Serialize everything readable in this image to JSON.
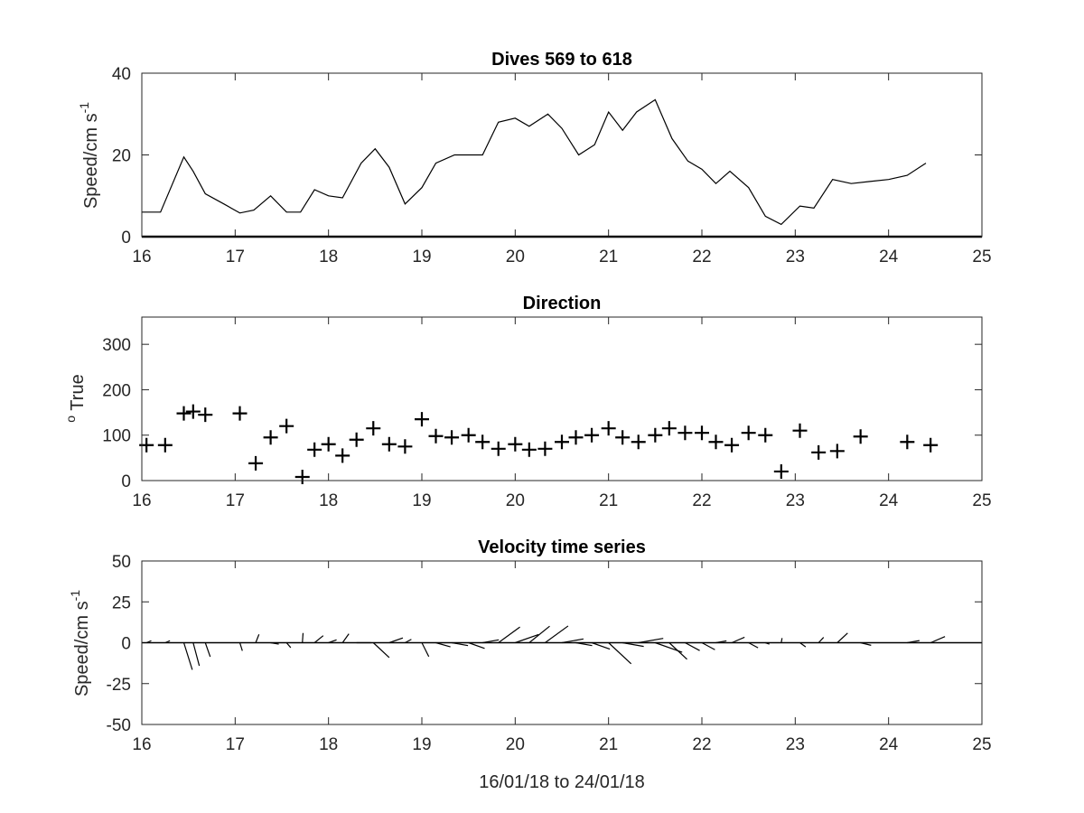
{
  "chart_data": [
    {
      "type": "line",
      "title": "Dives 569 to 618",
      "xlabel": "",
      "ylabel": "Speed/cm s",
      "ylabel_superscript": "-1",
      "xlim": [
        16,
        25
      ],
      "ylim": [
        0,
        40
      ],
      "xticks": [
        "16",
        "17",
        "18",
        "19",
        "20",
        "21",
        "22",
        "23",
        "24",
        "25"
      ],
      "yticks": [
        "0",
        "20",
        "40"
      ],
      "grid": false,
      "series": [
        {
          "x": [
            16.0,
            16.2,
            16.45,
            16.55,
            16.68,
            16.88,
            17.05,
            17.2,
            17.38,
            17.55,
            17.7,
            17.85,
            18.0,
            18.15,
            18.35,
            18.5,
            18.65,
            18.82,
            19.0,
            19.15,
            19.35,
            19.5,
            19.65,
            19.82,
            20.0,
            20.15,
            20.35,
            20.5,
            20.68,
            20.85,
            21.0,
            21.15,
            21.3,
            21.5,
            21.68,
            21.85,
            22.0,
            22.15,
            22.3,
            22.5,
            22.68,
            22.85,
            23.05,
            23.2,
            23.4,
            23.6,
            23.8,
            24.0,
            24.2,
            24.4
          ],
          "y": [
            6,
            6,
            19.5,
            16,
            10.5,
            8,
            5.8,
            6.5,
            10,
            6,
            6,
            11.5,
            10,
            9.5,
            18,
            21.5,
            17,
            8,
            12,
            18,
            20,
            20,
            20,
            28,
            29,
            27,
            30,
            26.5,
            20,
            22.5,
            30.5,
            26,
            30.5,
            33.5,
            24,
            18.5,
            16.5,
            13,
            16,
            12,
            5,
            3,
            7.5,
            7,
            14,
            13,
            13.5,
            14,
            15,
            18
          ]
        }
      ]
    },
    {
      "type": "scatter",
      "title": "Direction",
      "xlabel": "",
      "ylabel": "True",
      "ylabel_prefix": "o",
      "xlim": [
        16,
        25
      ],
      "ylim": [
        0,
        360
      ],
      "xticks": [
        "16",
        "17",
        "18",
        "19",
        "20",
        "21",
        "22",
        "23",
        "24",
        "25"
      ],
      "yticks": [
        "0",
        "100",
        "200",
        "300"
      ],
      "marker": "+",
      "grid": false,
      "series": [
        {
          "x": [
            16.05,
            16.25,
            16.45,
            16.55,
            16.68,
            17.05,
            17.22,
            17.38,
            17.55,
            17.72,
            17.85,
            18.0,
            18.15,
            18.3,
            18.48,
            18.65,
            18.82,
            19.0,
            19.15,
            19.32,
            19.5,
            19.65,
            19.82,
            20.0,
            20.15,
            20.32,
            20.5,
            20.65,
            20.82,
            21.0,
            21.15,
            21.32,
            21.5,
            21.65,
            21.82,
            22.0,
            22.15,
            22.32,
            22.5,
            22.68,
            22.85,
            23.05,
            23.25,
            23.45,
            23.7,
            24.2,
            24.45
          ],
          "y": [
            78,
            78,
            148,
            152,
            145,
            148,
            38,
            95,
            120,
            8,
            68,
            80,
            55,
            90,
            115,
            80,
            75,
            135,
            98,
            95,
            100,
            85,
            70,
            80,
            68,
            70,
            85,
            95,
            100,
            115,
            95,
            85,
            100,
            115,
            105,
            105,
            85,
            78,
            105,
            100,
            20,
            110,
            62,
            65,
            97,
            85,
            78
          ]
        }
      ]
    },
    {
      "type": "feather",
      "title": "Velocity time series",
      "xlabel": "16/01/18 to 24/01/18",
      "ylabel": "Speed/cm s",
      "ylabel_superscript": "-1",
      "xlim": [
        16,
        25
      ],
      "ylim": [
        -50,
        50
      ],
      "xticks": [
        "16",
        "17",
        "18",
        "19",
        "20",
        "21",
        "22",
        "23",
        "24",
        "25"
      ],
      "yticks": [
        "-50",
        "-25",
        "0",
        "25",
        "50"
      ],
      "grid": false,
      "series": [
        {
          "x": [
            16.05,
            16.25,
            16.45,
            16.55,
            16.68,
            17.05,
            17.22,
            17.38,
            17.55,
            17.72,
            17.85,
            18.0,
            18.15,
            18.3,
            18.48,
            18.65,
            18.82,
            19.0,
            19.15,
            19.32,
            19.5,
            19.65,
            19.82,
            20.0,
            20.15,
            20.32,
            20.5,
            20.65,
            20.82,
            21.0,
            21.15,
            21.32,
            21.5,
            21.65,
            21.82,
            22.0,
            22.15,
            22.32,
            22.5,
            22.68,
            22.85,
            23.05,
            23.25,
            23.45,
            23.7,
            24.2,
            24.45
          ],
          "speed": [
            6,
            6,
            19.5,
            16,
            10.5,
            5.8,
            6.5,
            10,
            6,
            6,
            11.5,
            10,
            9.5,
            18,
            21.5,
            17,
            8,
            12,
            18,
            20,
            20,
            20,
            28,
            29,
            27,
            30,
            26.5,
            20,
            22.5,
            30.5,
            26,
            30.5,
            33.5,
            24,
            18.5,
            16.5,
            13,
            16,
            12,
            5,
            3,
            7.5,
            7,
            14,
            13,
            15,
            18
          ],
          "direction": [
            78,
            78,
            148,
            152,
            145,
            148,
            38,
            95,
            120,
            8,
            68,
            80,
            55,
            90,
            115,
            80,
            75,
            135,
            98,
            95,
            100,
            85,
            70,
            80,
            68,
            70,
            85,
            95,
            100,
            115,
            95,
            85,
            100,
            115,
            105,
            105,
            85,
            78,
            105,
            100,
            20,
            110,
            62,
            65,
            97,
            85,
            78
          ]
        }
      ]
    }
  ]
}
